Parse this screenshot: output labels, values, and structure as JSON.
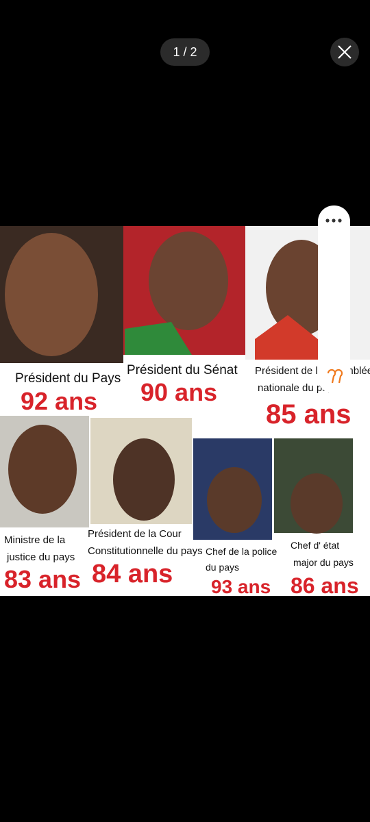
{
  "viewer": {
    "pager": "1 / 2"
  },
  "image": {
    "cards": [
      {
        "caption": [
          "Président du Pays"
        ],
        "age": "92 ans"
      },
      {
        "caption": [
          "Président du Sénat"
        ],
        "age": "90 ans"
      },
      {
        "caption": [
          "Président de l' Assemblée",
          "nationale du pays"
        ],
        "age": "85 ans"
      },
      {
        "caption": [
          "Ministre de la",
          "justice du pays"
        ],
        "age": "83 ans"
      },
      {
        "caption": [
          "Président de la Cour",
          "Constitutionnelle du pays"
        ],
        "age": "84 ans"
      },
      {
        "caption": [
          "Chef de la police",
          "du pays"
        ],
        "age": "93 ans"
      },
      {
        "caption": [
          "Chef d' état",
          "major du pays"
        ],
        "age": "86 ans"
      }
    ]
  }
}
